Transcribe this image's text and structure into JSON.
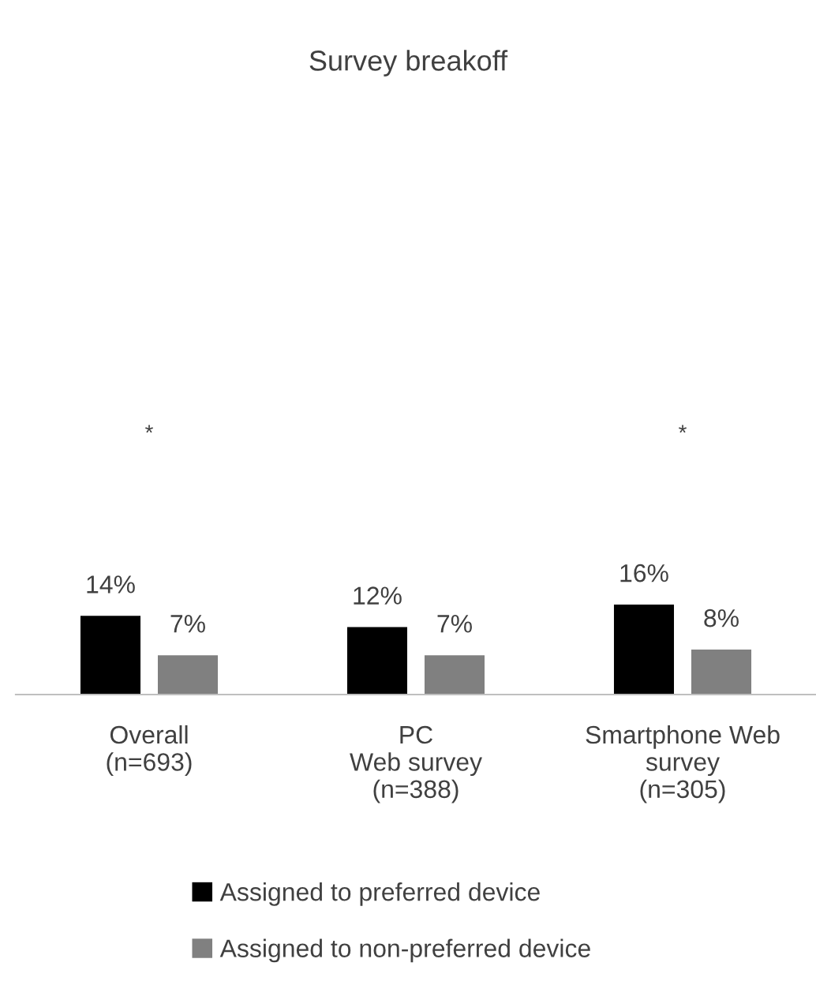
{
  "chart_data": {
    "type": "bar",
    "title": "Survey breakoff",
    "categories": [
      "Overall\n(n=693)",
      "PC\nWeb survey\n(n=388)",
      "Smartphone Web\nsurvey\n(n=305)"
    ],
    "series": [
      {
        "name": "Assigned to preferred device",
        "color": "#000000",
        "values": [
          14,
          12,
          16
        ],
        "value_labels": [
          "14%",
          "12%",
          "16%"
        ]
      },
      {
        "name": "Assigned to non-preferred device",
        "color": "#808080",
        "values": [
          7,
          7,
          8
        ],
        "value_labels": [
          "7%",
          "7%",
          "8%"
        ]
      }
    ],
    "annotations": [
      "*",
      "*"
    ],
    "grid": false,
    "legend": "bottom"
  }
}
